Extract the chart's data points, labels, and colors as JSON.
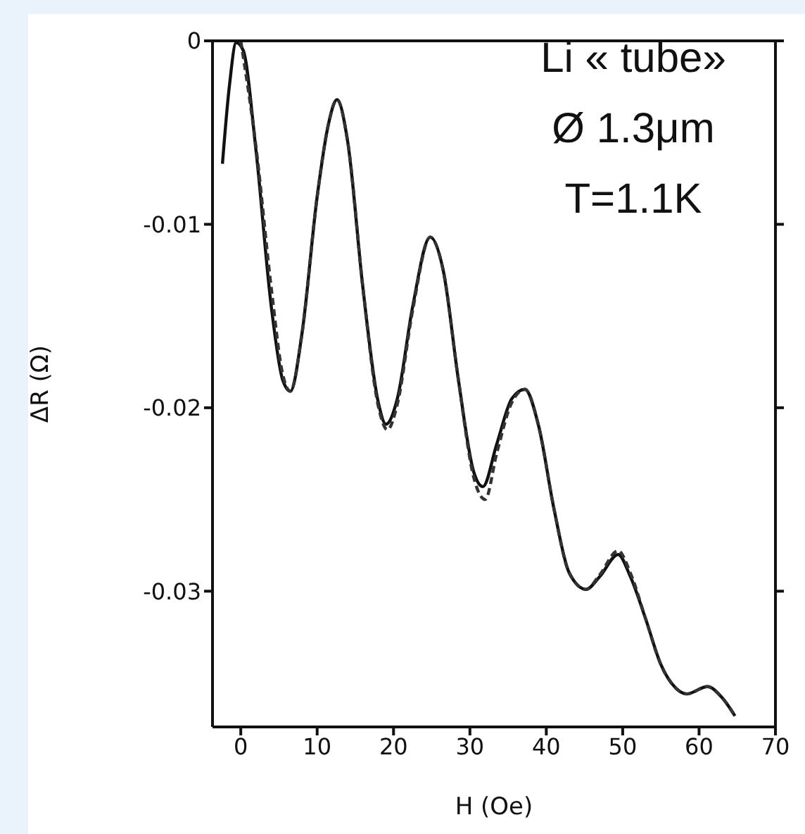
{
  "chart_data": {
    "type": "line",
    "xlabel": "H (Oe)",
    "ylabel": "ΔR (Ω)",
    "xlim": [
      -3.7,
      70
    ],
    "xticks": [
      0,
      10,
      20,
      30,
      40,
      50,
      60,
      70
    ],
    "ylim": [
      -0.0374,
      0
    ],
    "yticks": [
      0,
      -0.01,
      -0.02,
      -0.03
    ],
    "grid": false,
    "legend": false,
    "marker": "none",
    "annotations": [
      "Li « tube»",
      "Ø 1.3μm",
      "T=1.1K"
    ],
    "series": [
      {
        "color": "#111111",
        "line_style": "solid",
        "x": [
          -2.4,
          -1.5,
          -0.6,
          0.3,
          2,
          4,
          5.5,
          6.5,
          8,
          10,
          11.5,
          12.6,
          14,
          16,
          18,
          19,
          20.5,
          22.5,
          24.8,
          26.5,
          28.5,
          30.5,
          31.7,
          33.5,
          35.5,
          37.2,
          39,
          41,
          43,
          45.2,
          47,
          49.4,
          51,
          53,
          55,
          57,
          58.4,
          61.1,
          63,
          64.7
        ],
        "values": [
          -0.0067,
          -0.0025,
          -0.0001,
          -0.0005,
          -0.006,
          -0.0145,
          -0.0185,
          -0.0191,
          -0.016,
          -0.0085,
          -0.0045,
          -0.0032,
          -0.0055,
          -0.0135,
          -0.0197,
          -0.0209,
          -0.0195,
          -0.0145,
          -0.0107,
          -0.0125,
          -0.0185,
          -0.0235,
          -0.0243,
          -0.022,
          -0.0195,
          -0.019,
          -0.021,
          -0.0255,
          -0.029,
          -0.0299,
          -0.0292,
          -0.028,
          -0.0292,
          -0.0315,
          -0.034,
          -0.0353,
          -0.0356,
          -0.0352,
          -0.0358,
          -0.0368
        ]
      },
      {
        "color": "#333333",
        "line_style": "dashed",
        "x": [
          0,
          2,
          4,
          5.5,
          6.5,
          8,
          10,
          11.5,
          12.6,
          14,
          16,
          18,
          19.2,
          20.5,
          22.5,
          24.8,
          26.5,
          28.5,
          30.5,
          32,
          33.5,
          35.5,
          37.2,
          39,
          41,
          43,
          45.2,
          47,
          49.4,
          51,
          53,
          55,
          57,
          58.4,
          61.1,
          63,
          64.7
        ],
        "values": [
          0,
          -0.0058,
          -0.0135,
          -0.0182,
          -0.0191,
          -0.016,
          -0.0085,
          -0.0045,
          -0.0032,
          -0.0055,
          -0.0135,
          -0.0199,
          -0.0212,
          -0.0198,
          -0.0147,
          -0.0107,
          -0.0125,
          -0.0185,
          -0.0238,
          -0.025,
          -0.0225,
          -0.0197,
          -0.019,
          -0.021,
          -0.0255,
          -0.029,
          -0.0299,
          -0.0291,
          -0.0278,
          -0.029,
          -0.0315,
          -0.034,
          -0.0353,
          -0.0356,
          -0.0352,
          -0.0358,
          -0.0368
        ]
      }
    ]
  }
}
